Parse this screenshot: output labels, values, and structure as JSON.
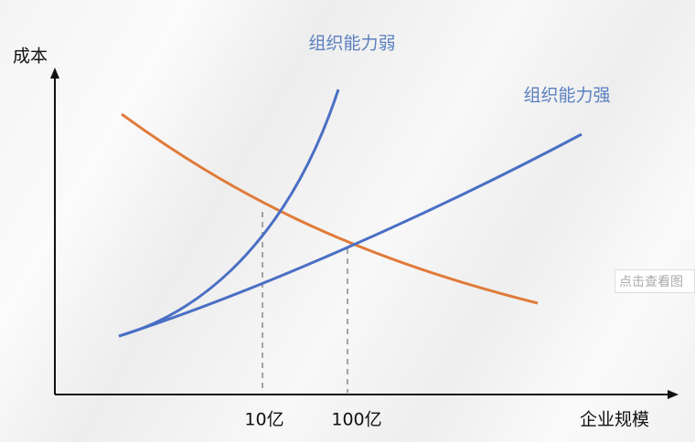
{
  "axis": {
    "y_label": "成本",
    "x_label": "企业规模",
    "x_marks": [
      "10亿",
      "100亿"
    ]
  },
  "curves": {
    "weak": "组织能力弱",
    "strong": "组织能力强"
  },
  "overlay": {
    "button": "点击查看图"
  }
}
